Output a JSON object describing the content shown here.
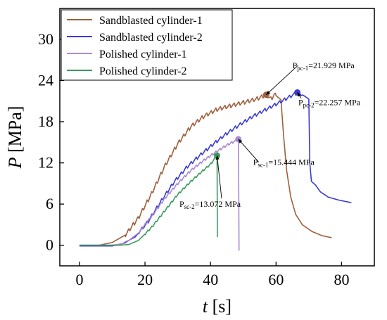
{
  "chart_data": {
    "type": "line",
    "xlabel": {
      "var": "t",
      "unit": " [s]"
    },
    "ylabel": {
      "var": "P",
      "unit": " [MPa]"
    },
    "xlim": [
      -6,
      90
    ],
    "ylim": [
      -3,
      34.5
    ],
    "xticks": [
      0,
      20,
      40,
      60,
      80
    ],
    "yticks": [
      0,
      6,
      12,
      18,
      24,
      30
    ],
    "xtick_labels": [
      "0",
      "20",
      "40",
      "60",
      "80"
    ],
    "ytick_labels": [
      "0",
      "6",
      "12",
      "18",
      "24",
      "30"
    ],
    "grid": false,
    "legend_position": "top-left",
    "series": [
      {
        "name": "Sandblasted cylinder-1",
        "color": "#a0603c",
        "ripple": 0.6,
        "ripple_period": 1.4,
        "ripple_from": 14,
        "ripple_to": 60,
        "points": [
          [
            0,
            0
          ],
          [
            6,
            0
          ],
          [
            10,
            0.4
          ],
          [
            14,
            1.5
          ],
          [
            18,
            4
          ],
          [
            22,
            7.5
          ],
          [
            26,
            11.5
          ],
          [
            30,
            14.8
          ],
          [
            34,
            17.3
          ],
          [
            38,
            18.8
          ],
          [
            42,
            19.8
          ],
          [
            46,
            20.3
          ],
          [
            50,
            20.8
          ],
          [
            54,
            21.3
          ],
          [
            57,
            21.929
          ],
          [
            58.5,
            21.3
          ],
          [
            59.5,
            22.0
          ],
          [
            61.5,
            21.2
          ],
          [
            62.3,
            16
          ],
          [
            63.2,
            11
          ],
          [
            64.5,
            7
          ],
          [
            66,
            4.5
          ],
          [
            68,
            3
          ],
          [
            71,
            2
          ],
          [
            74,
            1.4
          ],
          [
            77,
            1.1
          ]
        ]
      },
      {
        "name": "Sandblasted cylinder-2",
        "color": "#3c3cd2",
        "ripple": 0.5,
        "ripple_period": 1.5,
        "ripple_from": 18,
        "ripple_to": 68,
        "points": [
          [
            0,
            -0.1
          ],
          [
            10,
            -0.1
          ],
          [
            13,
            0.2
          ],
          [
            17,
            1.2
          ],
          [
            21,
            3.5
          ],
          [
            25,
            6.5
          ],
          [
            29,
            9.3
          ],
          [
            33,
            11.5
          ],
          [
            37,
            13.2
          ],
          [
            41,
            14.8
          ],
          [
            45,
            16.3
          ],
          [
            49,
            17.6
          ],
          [
            53,
            18.8
          ],
          [
            57,
            19.8
          ],
          [
            61,
            20.8
          ],
          [
            64,
            21.6
          ],
          [
            66.5,
            22.257
          ],
          [
            68.5,
            21.8
          ],
          [
            70,
            21.3
          ],
          [
            70.3,
            12
          ],
          [
            70.8,
            9.3
          ],
          [
            72,
            8.8
          ],
          [
            73.5,
            7.8
          ],
          [
            76,
            7.0
          ],
          [
            79,
            6.6
          ],
          [
            82,
            6.3
          ],
          [
            83,
            6.2
          ]
        ]
      },
      {
        "name": "Polished cylinder-1",
        "color": "#a98bd2",
        "ripple": 0.35,
        "ripple_period": 1.2,
        "ripple_from": 18,
        "ripple_to": 48,
        "points": [
          [
            0,
            0
          ],
          [
            10,
            0
          ],
          [
            14,
            0.3
          ],
          [
            18,
            1.8
          ],
          [
            22,
            4.2
          ],
          [
            26,
            6.8
          ],
          [
            30,
            9.0
          ],
          [
            34,
            10.9
          ],
          [
            38,
            12.4
          ],
          [
            42,
            13.7
          ],
          [
            45,
            14.6
          ],
          [
            48.5,
            15.444
          ],
          [
            48.6,
            9
          ],
          [
            48.7,
            -0.8
          ]
        ]
      },
      {
        "name": "Polished cylinder-2",
        "color": "#3c9a5f",
        "ripple": 0.3,
        "ripple_period": 1.2,
        "ripple_from": 20,
        "ripple_to": 42,
        "points": [
          [
            0,
            0
          ],
          [
            12,
            0
          ],
          [
            15,
            0.1
          ],
          [
            18,
            0.7
          ],
          [
            22,
            2.6
          ],
          [
            26,
            5.0
          ],
          [
            30,
            7.4
          ],
          [
            34,
            9.3
          ],
          [
            38,
            11.0
          ],
          [
            40,
            11.8
          ],
          [
            42,
            13.072
          ],
          [
            42.05,
            6
          ],
          [
            42.1,
            1.2
          ]
        ]
      }
    ],
    "markers": [
      {
        "series": 0,
        "x": 57,
        "y": 21.929
      },
      {
        "series": 1,
        "x": 66.5,
        "y": 22.257
      },
      {
        "series": 2,
        "x": 48.5,
        "y": 15.444
      },
      {
        "series": 3,
        "x": 42,
        "y": 13.072
      }
    ],
    "annotations": [
      {
        "main": "P",
        "sub": "pc-1",
        "value": "=21.929 MPa",
        "point": [
          57,
          21.929
        ],
        "text_at": [
          65,
          25.8
        ]
      },
      {
        "main": "P",
        "sub": "pc-2",
        "value": "=22.257 MPa",
        "point": [
          66.5,
          22.257
        ],
        "text_at": [
          66.8,
          20.4
        ]
      },
      {
        "main": "P",
        "sub": "sc-1",
        "value": "=15.444 MPa",
        "point": [
          48.5,
          15.444
        ],
        "text_at": [
          53,
          11.7
        ]
      },
      {
        "main": "P",
        "sub": "sc-2",
        "value": "=13.072 MPa",
        "point": [
          42,
          13.072
        ],
        "text_at": [
          30.5,
          5.6
        ]
      }
    ]
  }
}
